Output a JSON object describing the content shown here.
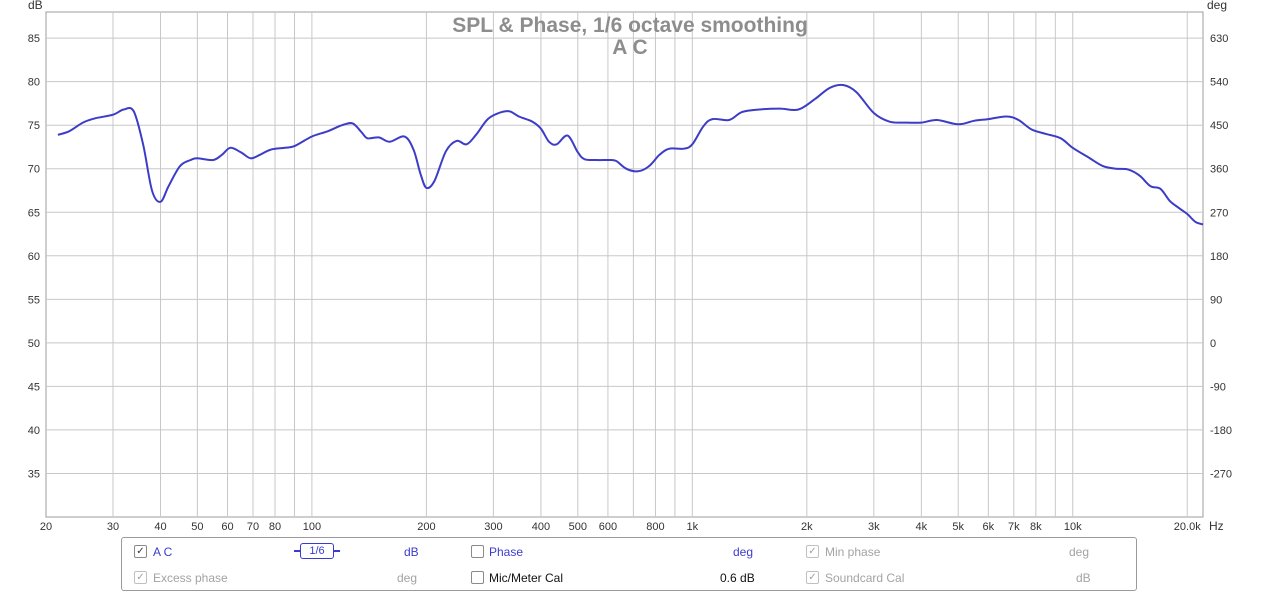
{
  "chart_data": {
    "type": "line",
    "title": "SPL & Phase, 1/6 octave smoothing",
    "subtitle": "A C",
    "left_axis": {
      "label": "dB",
      "ticks": [
        85,
        80,
        75,
        70,
        65,
        60,
        55,
        50,
        45,
        40,
        35
      ],
      "range": [
        30,
        88
      ]
    },
    "right_axis": {
      "label": "deg",
      "ticks": [
        630,
        540,
        450,
        360,
        270,
        180,
        90,
        0,
        -90,
        -180,
        -270
      ]
    },
    "x_axis": {
      "unit": "Hz",
      "scale": "log",
      "range": [
        20,
        22000
      ],
      "tick_values": [
        20,
        30,
        40,
        50,
        60,
        70,
        80,
        100,
        200,
        300,
        400,
        500,
        600,
        800,
        1000,
        2000,
        3000,
        4000,
        5000,
        6000,
        7000,
        8000,
        10000,
        20000
      ],
      "tick_labels": [
        "20",
        "30",
        "40",
        "50",
        "60",
        "70",
        "80",
        "100",
        "200",
        "300",
        "400",
        "500",
        "600",
        "800",
        "1k",
        "2k",
        "3k",
        "4k",
        "5k",
        "6k",
        "7k",
        "8k",
        "10k",
        "20.0k"
      ],
      "minor_values": [
        90,
        700,
        900,
        9000
      ]
    },
    "series": [
      {
        "name": "A C",
        "color": "#3c3cc8",
        "points": [
          [
            21.5,
            73.9
          ],
          [
            23,
            74.3
          ],
          [
            25,
            75.3
          ],
          [
            27,
            75.8
          ],
          [
            30,
            76.2
          ],
          [
            32,
            76.8
          ],
          [
            34,
            76.6
          ],
          [
            36,
            72.8
          ],
          [
            38,
            67.5
          ],
          [
            40,
            66.2
          ],
          [
            42,
            68.0
          ],
          [
            45,
            70.3
          ],
          [
            48,
            71.0
          ],
          [
            50,
            71.2
          ],
          [
            55,
            71.0
          ],
          [
            58,
            71.6
          ],
          [
            61,
            72.4
          ],
          [
            65,
            71.9
          ],
          [
            69,
            71.2
          ],
          [
            73,
            71.6
          ],
          [
            78,
            72.2
          ],
          [
            85,
            72.4
          ],
          [
            90,
            72.6
          ],
          [
            100,
            73.7
          ],
          [
            110,
            74.3
          ],
          [
            120,
            75.0
          ],
          [
            128,
            75.2
          ],
          [
            135,
            74.2
          ],
          [
            140,
            73.5
          ],
          [
            150,
            73.6
          ],
          [
            160,
            73.1
          ],
          [
            175,
            73.7
          ],
          [
            185,
            72.2
          ],
          [
            193,
            69.4
          ],
          [
            200,
            67.8
          ],
          [
            210,
            68.6
          ],
          [
            225,
            72.0
          ],
          [
            240,
            73.2
          ],
          [
            255,
            72.8
          ],
          [
            270,
            73.9
          ],
          [
            290,
            75.7
          ],
          [
            310,
            76.4
          ],
          [
            330,
            76.6
          ],
          [
            350,
            76.0
          ],
          [
            380,
            75.4
          ],
          [
            400,
            74.6
          ],
          [
            420,
            73.1
          ],
          [
            440,
            72.8
          ],
          [
            470,
            73.8
          ],
          [
            500,
            71.9
          ],
          [
            520,
            71.1
          ],
          [
            560,
            71.0
          ],
          [
            600,
            71.0
          ],
          [
            630,
            70.9
          ],
          [
            670,
            70.0
          ],
          [
            720,
            69.7
          ],
          [
            770,
            70.3
          ],
          [
            820,
            71.6
          ],
          [
            870,
            72.3
          ],
          [
            950,
            72.3
          ],
          [
            1000,
            72.8
          ],
          [
            1070,
            74.9
          ],
          [
            1130,
            75.7
          ],
          [
            1250,
            75.6
          ],
          [
            1350,
            76.5
          ],
          [
            1500,
            76.8
          ],
          [
            1700,
            76.9
          ],
          [
            1900,
            76.8
          ],
          [
            2100,
            78.0
          ],
          [
            2300,
            79.3
          ],
          [
            2500,
            79.6
          ],
          [
            2700,
            78.8
          ],
          [
            3000,
            76.4
          ],
          [
            3300,
            75.4
          ],
          [
            3600,
            75.3
          ],
          [
            4000,
            75.3
          ],
          [
            4400,
            75.6
          ],
          [
            5000,
            75.1
          ],
          [
            5500,
            75.5
          ],
          [
            6000,
            75.7
          ],
          [
            6700,
            76.0
          ],
          [
            7200,
            75.6
          ],
          [
            7800,
            74.5
          ],
          [
            8500,
            74.0
          ],
          [
            9300,
            73.5
          ],
          [
            10000,
            72.4
          ],
          [
            11000,
            71.3
          ],
          [
            12000,
            70.3
          ],
          [
            13000,
            70.0
          ],
          [
            14000,
            69.9
          ],
          [
            15000,
            69.2
          ],
          [
            16000,
            68.0
          ],
          [
            17000,
            67.7
          ],
          [
            18000,
            66.3
          ],
          [
            19000,
            65.5
          ],
          [
            20000,
            64.8
          ],
          [
            21000,
            63.9
          ],
          [
            22000,
            63.6
          ]
        ]
      }
    ]
  },
  "controls": {
    "row1": {
      "trace_checked": "✓",
      "trace_label": "A C",
      "smoothing": "1/6",
      "trace_unit": "dB",
      "phase_label": "Phase",
      "phase_unit": "deg",
      "minphase_checked": "✓",
      "minphase_label": "Min phase",
      "minphase_unit": "deg"
    },
    "row2": {
      "excess_checked": "✓",
      "excess_label": "Excess phase",
      "excess_unit": "deg",
      "mic_label": "Mic/Meter Cal",
      "mic_value": "0.6 dB",
      "soundcard_checked": "✓",
      "soundcard_label": "Soundcard Cal",
      "soundcard_unit": "dB"
    }
  }
}
